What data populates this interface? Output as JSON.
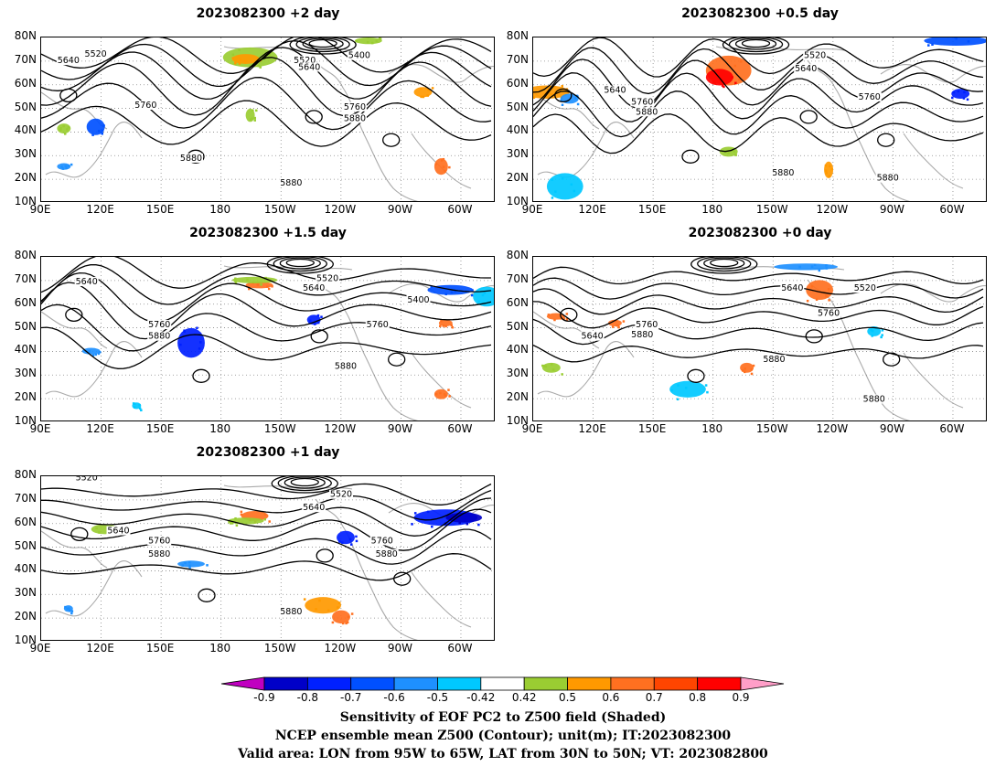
{
  "panels": [
    {
      "id": "p2day",
      "title": "2023082300 +2 day"
    },
    {
      "id": "p05day",
      "title": "2023082300 +0.5 day"
    },
    {
      "id": "p15day",
      "title": "2023082300 +1.5 day"
    },
    {
      "id": "p0day",
      "title": "2023082300 +0 day"
    },
    {
      "id": "p1day",
      "title": "2023082300 +1 day"
    }
  ],
  "lat_ticks": [
    "80N",
    "70N",
    "60N",
    "50N",
    "40N",
    "30N",
    "20N",
    "10N"
  ],
  "lon_ticks": [
    "90E",
    "120E",
    "150E",
    "180",
    "150W",
    "120W",
    "90W",
    "60W"
  ],
  "contour_labels": [
    "5400",
    "5520",
    "5640",
    "5760",
    "5880"
  ],
  "colorbar": {
    "levels": [
      "-0.9",
      "-0.8",
      "-0.7",
      "-0.6",
      "-0.5",
      "-0.42",
      "0.42",
      "0.5",
      "0.6",
      "0.7",
      "0.8",
      "0.9"
    ],
    "colors": [
      "#c000c0",
      "#0000c8",
      "#0020ff",
      "#0050ff",
      "#1e90ff",
      "#00c8ff",
      "#ffffff",
      "#9acd32",
      "#ff9900",
      "#ff7020",
      "#ff4500",
      "#ff0000",
      "#ff9ec8"
    ]
  },
  "footer": {
    "line1": "Sensitivity of EOF PC2 to Z500 field (Shaded)",
    "line2": "NCEP ensemble mean Z500 (Contour); unit(m); IT:2023082300",
    "line3": "Valid area: LON from 95W to 65W, LAT from 30N to 50N; VT: 2023082800"
  }
}
